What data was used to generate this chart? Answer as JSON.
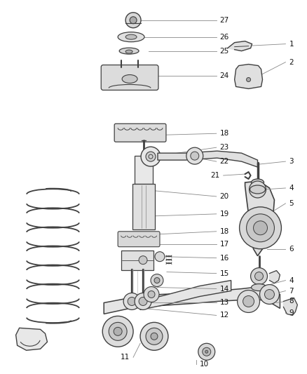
{
  "bg_color": "#ffffff",
  "line_color": "#404040",
  "font_size": 7.5,
  "fig_w": 4.38,
  "fig_h": 5.33,
  "dpi": 100
}
